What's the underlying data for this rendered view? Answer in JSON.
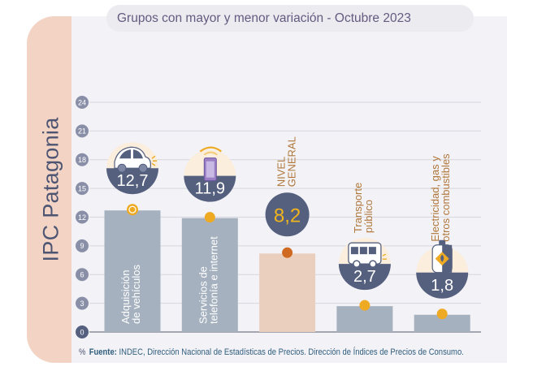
{
  "side_title": "IPC Patagonia",
  "header": {
    "title": "Grupos con mayor y menor variación - Octubre 2023"
  },
  "footer": {
    "unit_symbol": "%",
    "source_label": "Fuente:",
    "source_text": "INDEC, Dirección Nacional de Estadísticas de Precios. Dirección de Índices de Precios de Consumo."
  },
  "colors": {
    "bar": "#a6b1bf",
    "bar_general": "#ebcfbe",
    "navy": "#55607f",
    "cream": "#fbeedd",
    "dot": "#eeaa22",
    "dot_general": "#d06a22",
    "value_general": "#f1b51c",
    "category_text": "#b0773a",
    "grid": "#d6d6dc"
  },
  "chart_data": {
    "type": "bar",
    "title": "Grupos con mayor y menor variación - Octubre 2023",
    "xlabel": "",
    "ylabel": "%",
    "ylim": [
      0,
      24
    ],
    "yticks": [
      0,
      3,
      6,
      9,
      12,
      15,
      18,
      21,
      24
    ],
    "grid": true,
    "categories": [
      "Adquisición de vehículos",
      "Servicios de telefonía e internet",
      "NIVEL GENERAL",
      "Transporte público",
      "Electricidad, gas y otros combustibles"
    ],
    "category_lines": [
      [
        "Adquisición",
        "de vehículos"
      ],
      [
        "Servicios  de",
        "telefonía e internet"
      ],
      [
        "NIVEL",
        "GENERAL"
      ],
      [
        "Transporte",
        "público"
      ],
      [
        "Electricidad, gas y",
        "otros combustibles"
      ]
    ],
    "values": [
      12.7,
      11.9,
      8.2,
      2.7,
      1.8
    ],
    "value_labels": [
      "12,7",
      "11,9",
      "8,2",
      "2,7",
      "1,8"
    ],
    "icons": [
      "car-icon",
      "smartphone-wifi-icon",
      null,
      "bus-icon",
      "gas-cylinder-icon"
    ],
    "highlight_index": 2
  }
}
